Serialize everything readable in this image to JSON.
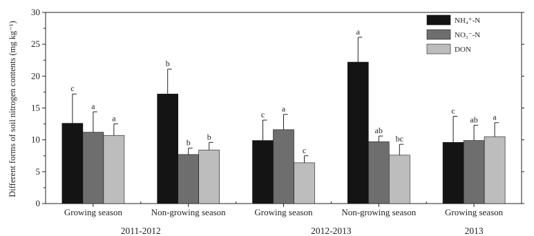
{
  "chart_data": {
    "type": "bar",
    "ylabel": "Different forms of soil nitrogen contents (mg kg⁻¹)",
    "ylim": [
      0,
      30
    ],
    "yticks": [
      0,
      5,
      10,
      15,
      20,
      25,
      30
    ],
    "categories": [
      "Growing season",
      "Non-growing season",
      "Growing season",
      "Non-growing season",
      "Growing season"
    ],
    "period_labels": [
      {
        "label": "2011-2012",
        "groups": [
          0,
          1
        ]
      },
      {
        "label": "2012-2013",
        "groups": [
          2,
          3
        ]
      },
      {
        "label": "2013",
        "groups": [
          4
        ]
      }
    ],
    "legend_position": "top-right",
    "series": [
      {
        "name": "NH₄⁺-N",
        "color": "#141414",
        "values": [
          12.6,
          17.2,
          9.9,
          22.2,
          9.6
        ],
        "errors": [
          4.6,
          3.9,
          3.2,
          3.9,
          4.1
        ],
        "letters": [
          "c",
          "b",
          "c",
          "a",
          "c"
        ]
      },
      {
        "name": "NO₃⁻-N",
        "color": "#6e6e6e",
        "values": [
          11.2,
          7.7,
          11.6,
          9.7,
          9.9
        ],
        "errors": [
          3.2,
          1.0,
          2.4,
          0.9,
          2.4
        ],
        "letters": [
          "a",
          "b",
          "a",
          "ab",
          "ab"
        ]
      },
      {
        "name": "DON",
        "color": "#bdbdbd",
        "values": [
          10.7,
          8.4,
          6.4,
          7.6,
          10.5
        ],
        "errors": [
          1.8,
          1.2,
          1.1,
          1.7,
          2.2
        ],
        "letters": [
          "a",
          "b",
          "c",
          "bc",
          "a"
        ]
      }
    ]
  }
}
